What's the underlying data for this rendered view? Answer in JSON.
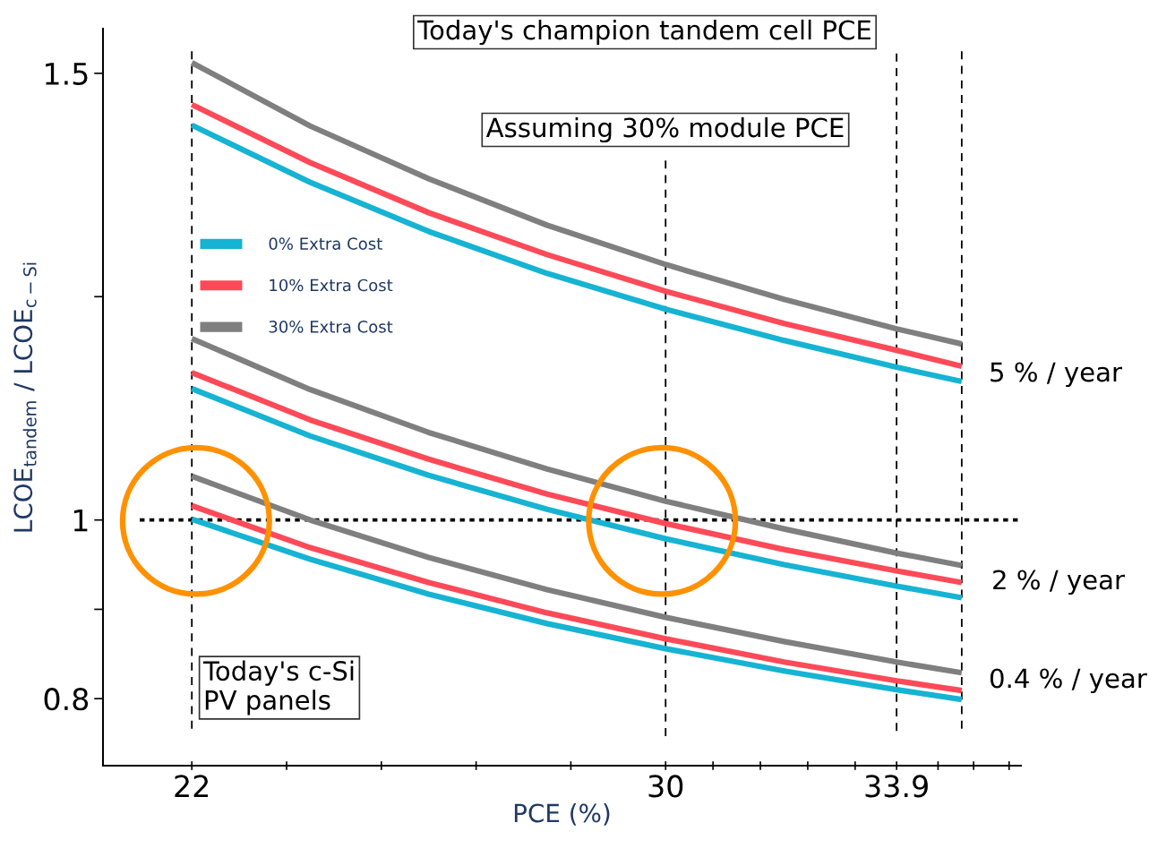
{
  "chart_data": {
    "type": "line",
    "xlabel": "PCE (%)",
    "ylabel": "LCOE$_{tandem}$ / LCOE$_{c−Si}$",
    "x": [
      22,
      24,
      26,
      28,
      30,
      32,
      33.9,
      35
    ],
    "series": [
      {
        "name": "0% Extra Cost",
        "color": "#16b3d3",
        "values": [
          1.442,
          1.378,
          1.323,
          1.276,
          1.236,
          1.201,
          1.171,
          1.155
        ]
      },
      {
        "name": "10% Extra Cost",
        "color": "#fd4a58",
        "values": [
          1.465,
          1.4,
          1.344,
          1.297,
          1.256,
          1.22,
          1.19,
          1.172
        ]
      },
      {
        "name": "30% Extra Cost",
        "color": "#7f7f7f",
        "values": [
          1.512,
          1.441,
          1.382,
          1.33,
          1.286,
          1.247,
          1.214,
          1.197
        ]
      },
      {
        "color": "#16b3d3",
        "values": [
          1.147,
          1.094,
          1.05,
          1.012,
          0.979,
          0.95,
          0.926,
          0.913
        ]
      },
      {
        "color": "#fd4a58",
        "values": [
          1.165,
          1.112,
          1.068,
          1.029,
          0.996,
          0.967,
          0.943,
          0.93
        ]
      },
      {
        "color": "#7f7f7f",
        "values": [
          1.203,
          1.146,
          1.098,
          1.057,
          1.021,
          0.99,
          0.963,
          0.949
        ]
      },
      {
        "color": "#16b3d3",
        "values": [
          1.001,
          0.956,
          0.917,
          0.884,
          0.856,
          0.831,
          0.81,
          0.799
        ]
      },
      {
        "color": "#fd4a58",
        "values": [
          1.016,
          0.969,
          0.93,
          0.896,
          0.867,
          0.841,
          0.82,
          0.809
        ]
      },
      {
        "color": "#7f7f7f",
        "values": [
          1.049,
          1.0,
          0.958,
          0.922,
          0.891,
          0.864,
          0.841,
          0.829
        ]
      }
    ],
    "xlim": [
      20.5,
      36
    ],
    "ylim": [
      0.725,
      1.55
    ],
    "xticks": [
      22,
      {
        "value": 23.6,
        "label": null
      },
      {
        "value": 25.2,
        "label": null
      },
      {
        "value": 26.8,
        "label": null
      },
      {
        "value": 28.4,
        "label": null
      },
      30,
      {
        "value": 30.8,
        "label": null
      },
      {
        "value": 31.6,
        "label": null
      },
      {
        "value": 32.4,
        "label": null
      },
      {
        "value": 33.2,
        "label": null
      },
      33.9,
      {
        "value": 34.6,
        "label": null
      },
      {
        "value": 35.2,
        "label": null
      },
      {
        "value": 35.8,
        "label": null
      }
    ],
    "yticks": [
      0.8,
      {
        "value": 0.9,
        "label": null
      },
      1,
      {
        "value": 1.25,
        "label": null
      },
      1.5
    ],
    "ref_lines": [
      {
        "axis": "x",
        "value": 22,
        "label": "Today's c-Si\nPV panels",
        "color": "#000000",
        "line_style": "dashed"
      },
      {
        "axis": "x",
        "value": 30,
        "label": "Assuming 30% module PCE",
        "color": "#000000",
        "line_style": "dashed"
      },
      {
        "axis": "x",
        "value": 33.9,
        "label": "Today's champion tandem cell PCE",
        "color": "#000000",
        "line_style": "dashed"
      },
      {
        "axis": "x",
        "value": 35,
        "color": "#000000",
        "line_style": "dashed"
      },
      {
        "axis": "y",
        "value": 1,
        "color": "#000000",
        "line_style": "dotted"
      }
    ],
    "annotations": [
      "5 % / year",
      "2 % / year",
      "0.4 % / year"
    ],
    "legend": "left",
    "grid": false,
    "marker": "none",
    "line_style": "solid"
  }
}
